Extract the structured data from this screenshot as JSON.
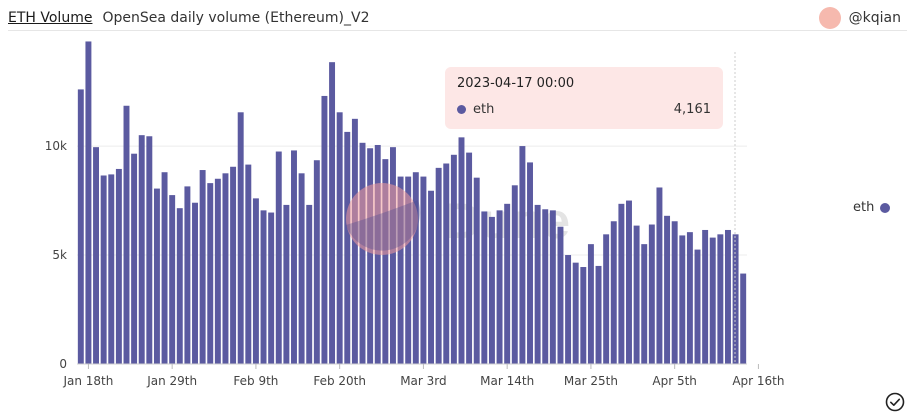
{
  "header": {
    "title": "ETH Volume",
    "subtitle": "OpenSea daily volume (Ethereum)_V2"
  },
  "author": {
    "handle": "@kqian"
  },
  "watermark": "Dune",
  "tooltip": {
    "date": "2023-04-17 00:00",
    "series": "eth",
    "value": "4,161"
  },
  "legend": {
    "label": "eth",
    "color": "#5b5aa0"
  },
  "chart_data": {
    "type": "bar",
    "x_start": "2023-01-17",
    "x_tick_labels": [
      "Jan 18th",
      "Jan 29th",
      "Feb 9th",
      "Feb 20th",
      "Mar 3rd",
      "Mar 14th",
      "Mar 25th",
      "Apr 5th",
      "Apr 16th"
    ],
    "x_tick_positions": [
      1,
      12,
      23,
      34,
      45,
      56,
      67,
      78,
      89
    ],
    "y_tick_labels": [
      "0",
      "5k",
      "10k"
    ],
    "y_ticks": [
      0,
      5000,
      10000
    ],
    "ylim": [
      0,
      14500
    ],
    "grid": true,
    "legend_placement": "right",
    "series": [
      {
        "name": "eth",
        "color": "#5b5aa0",
        "values": [
          12600,
          14800,
          9950,
          8650,
          8700,
          8950,
          11850,
          9650,
          10500,
          10450,
          8050,
          8800,
          7750,
          7150,
          8150,
          7400,
          8900,
          8300,
          8500,
          8750,
          9050,
          11550,
          9150,
          7600,
          7050,
          6950,
          9750,
          7300,
          9800,
          8750,
          7300,
          9350,
          12300,
          13850,
          11550,
          10650,
          11250,
          10150,
          9900,
          10050,
          9400,
          9950,
          8600,
          8600,
          8800,
          8600,
          7950,
          9000,
          9200,
          9600,
          10400,
          9700,
          8550,
          7000,
          6750,
          7050,
          7350,
          8200,
          10000,
          9250,
          7300,
          7100,
          7050,
          6300,
          5000,
          4650,
          4450,
          5500,
          4500,
          5950,
          6550,
          7350,
          7500,
          6350,
          5500,
          6400,
          8100,
          6800,
          6550,
          5900,
          6050,
          5250,
          6150,
          5800,
          5950,
          6150,
          5950,
          4150
        ]
      }
    ]
  }
}
